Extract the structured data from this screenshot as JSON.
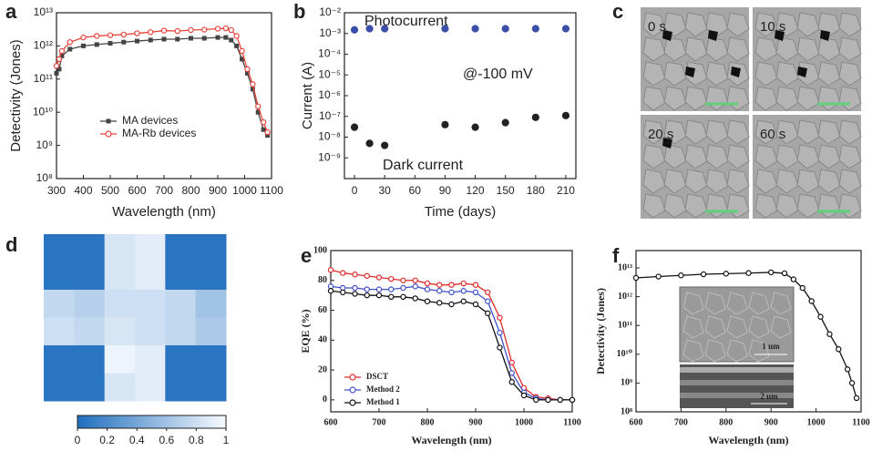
{
  "chart_data": [
    {
      "type": "line",
      "label": "a",
      "xlabel": "Wavelength (nm)",
      "ylabel": "Detectivity (Jones)",
      "log_y": true,
      "xlim": [
        300,
        1100
      ],
      "ylim": [
        100000000.0,
        10000000000000.0
      ],
      "xticks": [
        300,
        400,
        500,
        600,
        700,
        800,
        900,
        1000,
        1100
      ],
      "yticks": [
        {
          "value": 100000000.0,
          "label": "10⁸"
        },
        {
          "value": 1000000000.0,
          "label": "10⁹"
        },
        {
          "value": 10000000000.0,
          "label": "10¹⁰"
        },
        {
          "value": 100000000000.0,
          "label": "10¹¹"
        },
        {
          "value": 1000000000000.0,
          "label": "10¹²"
        },
        {
          "value": 10000000000000.0,
          "label": "10¹³"
        }
      ],
      "legend": "center-left",
      "series": [
        {
          "name": "MA devices",
          "color": "#444444",
          "marker": "square",
          "x": [
            300,
            310,
            320,
            350,
            400,
            450,
            500,
            550,
            600,
            650,
            700,
            750,
            800,
            850,
            900,
            930,
            950,
            970,
            990,
            1010,
            1030,
            1050,
            1070,
            1085
          ],
          "values": [
            150000000000.0,
            200000000000.0,
            500000000000.0,
            800000000000.0,
            1000000000000.0,
            1100000000000.0,
            1200000000000.0,
            1300000000000.0,
            1400000000000.0,
            1500000000000.0,
            1600000000000.0,
            1600000000000.0,
            1700000000000.0,
            1700000000000.0,
            1800000000000.0,
            1800000000000.0,
            1500000000000.0,
            1000000000000.0,
            400000000000.0,
            150000000000.0,
            50000000000.0,
            10000000000.0,
            3000000000.0,
            2000000000.0
          ]
        },
        {
          "name": "MA-Rb devices",
          "color": "#e8453c",
          "marker": "circle",
          "x": [
            300,
            310,
            320,
            350,
            400,
            450,
            500,
            550,
            600,
            650,
            700,
            750,
            800,
            850,
            900,
            930,
            950,
            970,
            990,
            1010,
            1030,
            1050,
            1070,
            1085
          ],
          "values": [
            250000000000.0,
            400000000000.0,
            700000000000.0,
            1300000000000.0,
            1800000000000.0,
            2000000000000.0,
            2100000000000.0,
            2200000000000.0,
            2400000000000.0,
            2600000000000.0,
            2900000000000.0,
            2800000000000.0,
            3000000000000.0,
            3100000000000.0,
            3300000000000.0,
            3400000000000.0,
            3000000000000.0,
            2000000000000.0,
            700000000000.0,
            200000000000.0,
            70000000000.0,
            15000000000.0,
            5000000000.0,
            2500000000.0
          ]
        }
      ]
    },
    {
      "type": "scatter",
      "label": "b",
      "xlabel": "Time (days)",
      "ylabel": "Current (A)",
      "log_y": true,
      "xlim": [
        -10,
        220
      ],
      "ylim": [
        1e-10,
        0.01
      ],
      "xticks": [
        0,
        30,
        60,
        90,
        120,
        150,
        180,
        210
      ],
      "yticks": [
        {
          "value": 1e-09,
          "label": "10⁻⁹"
        },
        {
          "value": 1e-08,
          "label": "10⁻⁸"
        },
        {
          "value": 1e-07,
          "label": "10⁻⁷"
        },
        {
          "value": 1e-06,
          "label": "10⁻⁶"
        },
        {
          "value": 1e-05,
          "label": "10⁻⁵"
        },
        {
          "value": 0.0001,
          "label": "10⁻⁴"
        },
        {
          "value": 0.001,
          "label": "10⁻³"
        },
        {
          "value": 0.01,
          "label": "10⁻²"
        }
      ],
      "annotations": [
        "@-100 mV"
      ],
      "series": [
        {
          "name": "Photocurrent",
          "color": "#3b4fa8",
          "marker": "circle",
          "x": [
            0,
            15,
            30,
            90,
            120,
            150,
            180,
            210
          ],
          "values": [
            0.0015,
            0.0017,
            0.0017,
            0.0017,
            0.0017,
            0.0017,
            0.0017,
            0.0017
          ]
        },
        {
          "name": "Dark current",
          "color": "#222222",
          "marker": "circle",
          "x": [
            0,
            15,
            30,
            90,
            120,
            150,
            180,
            210
          ],
          "values": [
            3e-08,
            5e-09,
            4e-09,
            4e-08,
            3e-08,
            5e-08,
            9e-08,
            1.1e-07
          ]
        }
      ]
    },
    {
      "type": "image",
      "label": "c",
      "panels": [
        "0 s",
        "10 s",
        "20 s",
        "60 s"
      ]
    },
    {
      "type": "heatmap",
      "label": "d",
      "colormap": [
        "#1f6ebe",
        "#f8fbff"
      ],
      "zlim": [
        0,
        1
      ],
      "colorbar_ticks": [
        0,
        0.2,
        0.4,
        0.6,
        0.8,
        1
      ],
      "values": [
        [
          0.05,
          0.05,
          0.85,
          0.9,
          0.05,
          0.05
        ],
        [
          0.05,
          0.05,
          0.85,
          0.9,
          0.05,
          0.05
        ],
        [
          0.75,
          0.7,
          0.8,
          0.8,
          0.75,
          0.6
        ],
        [
          0.8,
          0.75,
          0.85,
          0.8,
          0.75,
          0.65
        ],
        [
          0.05,
          0.05,
          0.95,
          0.9,
          0.05,
          0.05
        ],
        [
          0.05,
          0.05,
          0.85,
          0.9,
          0.05,
          0.05
        ]
      ]
    },
    {
      "type": "line",
      "label": "e",
      "xlabel": "Wavelength (nm)",
      "ylabel": "EQE (%)",
      "xlim": [
        600,
        1100
      ],
      "ylim": [
        -8,
        100
      ],
      "xticks": [
        600,
        700,
        800,
        900,
        1000,
        1100
      ],
      "yticks": [
        0,
        20,
        40,
        60,
        80,
        100
      ],
      "legend": "lower-left",
      "series": [
        {
          "name": "DSCT",
          "color": "#e02b2b",
          "marker": "circle",
          "x": [
            600,
            625,
            650,
            675,
            700,
            725,
            750,
            775,
            800,
            825,
            850,
            875,
            900,
            925,
            950,
            975,
            1000,
            1025,
            1050,
            1075,
            1100
          ],
          "values": [
            87,
            85,
            84,
            83,
            82,
            81,
            80,
            80,
            78,
            77,
            77,
            78,
            77,
            72,
            55,
            25,
            8,
            2,
            1,
            0,
            0
          ]
        },
        {
          "name": "Method 2",
          "color": "#4050c8",
          "marker": "circle",
          "x": [
            600,
            625,
            650,
            675,
            700,
            725,
            750,
            775,
            800,
            825,
            850,
            875,
            900,
            925,
            950,
            975,
            1000,
            1025,
            1050,
            1075,
            1100
          ],
          "values": [
            76,
            75,
            75,
            74,
            74,
            74,
            75,
            76,
            74,
            73,
            72,
            73,
            72,
            66,
            45,
            18,
            5,
            1,
            0,
            0,
            0
          ]
        },
        {
          "name": "Method 1",
          "color": "#111111",
          "marker": "circle",
          "x": [
            600,
            625,
            650,
            675,
            700,
            725,
            750,
            775,
            800,
            825,
            850,
            875,
            900,
            925,
            950,
            975,
            1000,
            1025,
            1050,
            1075,
            1100
          ],
          "values": [
            73,
            72,
            71,
            70,
            70,
            69,
            69,
            68,
            66,
            65,
            64,
            66,
            64,
            58,
            35,
            12,
            3,
            0,
            0,
            0,
            0
          ]
        }
      ]
    },
    {
      "type": "line",
      "label": "f",
      "xlabel": "Wavelength (nm)",
      "ylabel": "Detectivity (Jones)",
      "log_y": true,
      "xlim": [
        600,
        1100
      ],
      "ylim": [
        100000000.0,
        40000000000000.0
      ],
      "xticks": [
        600,
        700,
        800,
        900,
        1000,
        1100
      ],
      "yticks": [
        {
          "value": 100000000.0,
          "label": "10⁸"
        },
        {
          "value": 1000000000.0,
          "label": "10⁹"
        },
        {
          "value": 10000000000.0,
          "label": "10¹⁰"
        },
        {
          "value": 100000000000.0,
          "label": "10¹¹"
        },
        {
          "value": 1000000000000.0,
          "label": "10¹²"
        },
        {
          "value": 10000000000000.0,
          "label": "10¹³"
        }
      ],
      "inset_labels": [
        "1 um",
        "2 um"
      ],
      "series": [
        {
          "name": null,
          "color": "#111111",
          "marker": "circle",
          "x": [
            600,
            650,
            700,
            750,
            800,
            850,
            900,
            930,
            950,
            970,
            990,
            1010,
            1030,
            1050,
            1070,
            1080,
            1090
          ],
          "values": [
            4500000000000.0,
            5000000000000.0,
            5500000000000.0,
            6000000000000.0,
            6300000000000.0,
            6600000000000.0,
            7000000000000.0,
            6500000000000.0,
            4000000000000.0,
            2000000000000.0,
            700000000000.0,
            200000000000.0,
            50000000000.0,
            15000000000.0,
            3000000000.0,
            1000000000.0,
            300000000.0
          ]
        }
      ]
    }
  ]
}
